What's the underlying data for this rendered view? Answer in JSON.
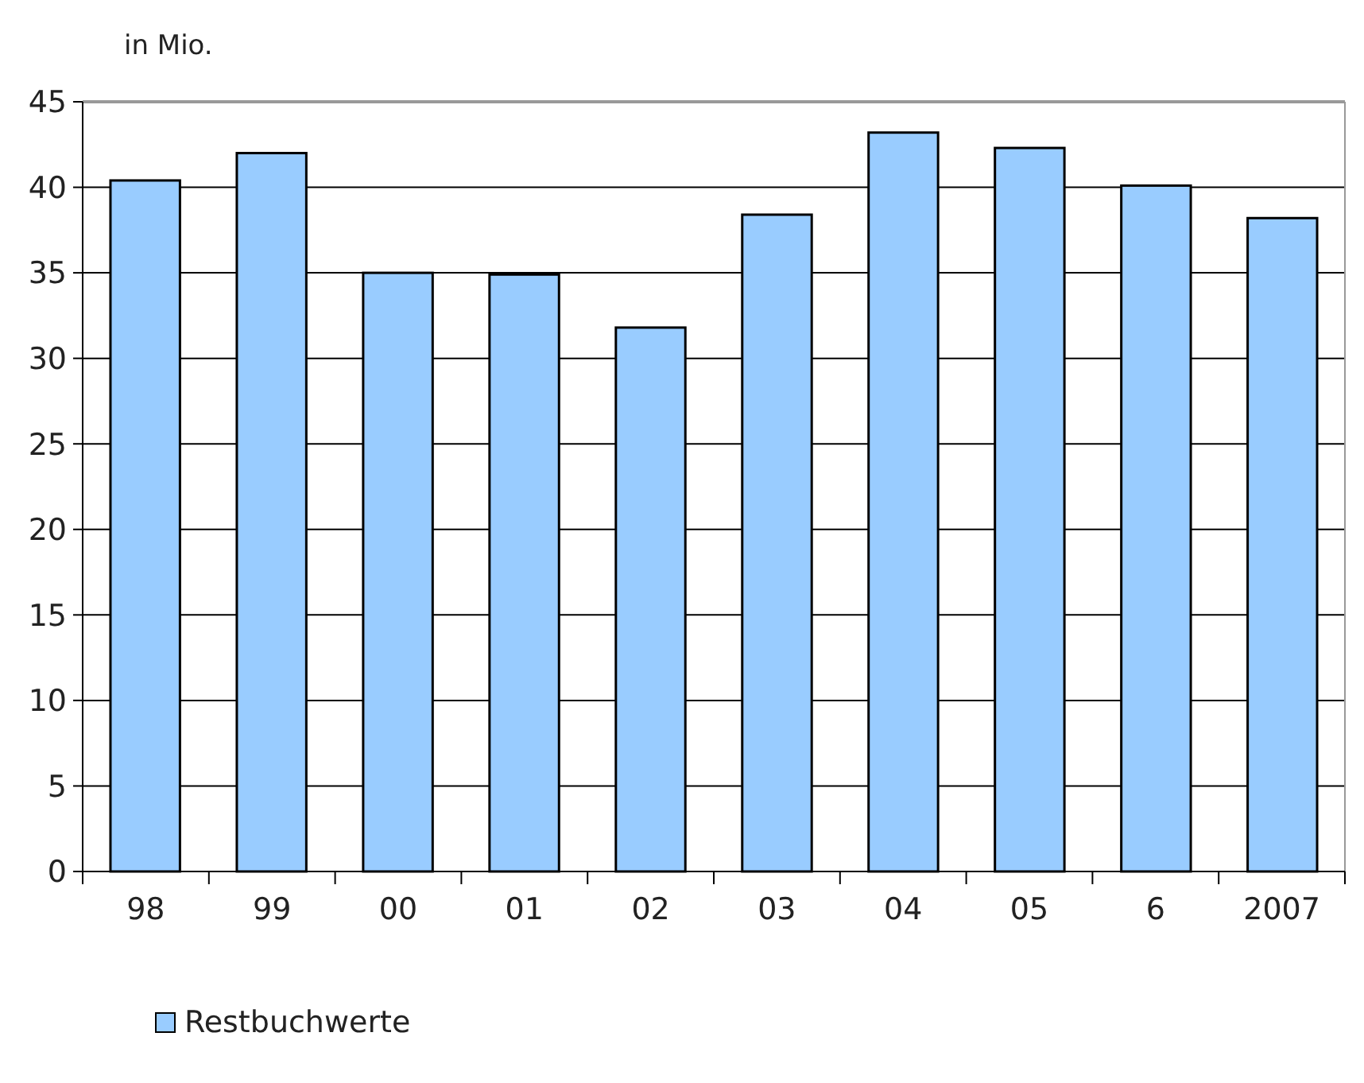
{
  "chart_data": {
    "type": "bar",
    "ylabel": "in Mio.",
    "categories": [
      "98",
      "99",
      "00",
      "01",
      "02",
      "03",
      "04",
      "05",
      "6",
      "2007"
    ],
    "series": [
      {
        "name": "Restbuchwerte",
        "color": "#99ccff",
        "values": [
          40.4,
          42.0,
          35.0,
          34.9,
          31.8,
          38.4,
          43.2,
          42.3,
          40.1,
          38.2
        ]
      }
    ],
    "ylim": [
      0,
      45
    ],
    "yticks": [
      0,
      5,
      10,
      15,
      20,
      25,
      30,
      35,
      40,
      45
    ],
    "grid": "y",
    "legend": "bottom"
  }
}
